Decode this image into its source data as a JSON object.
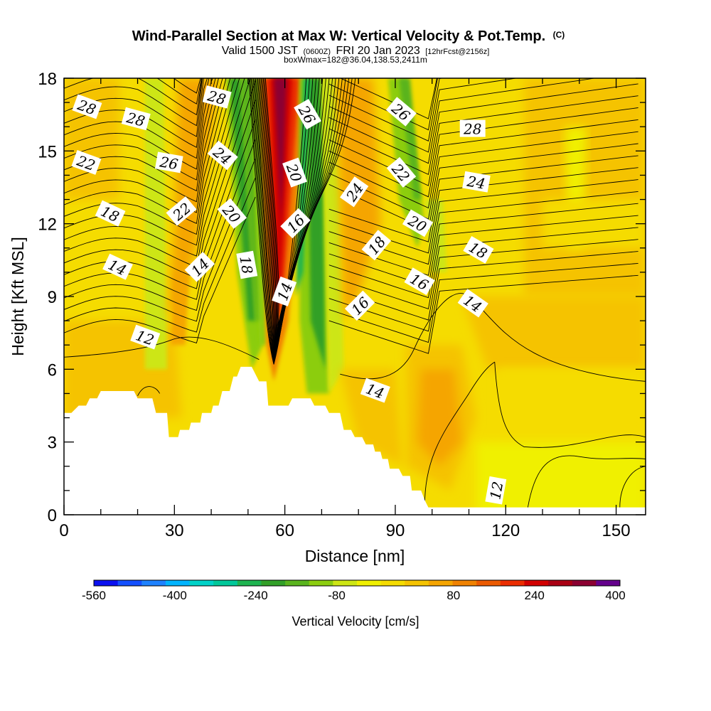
{
  "chart_data": {
    "type": "heatmap",
    "title": "Wind-Parallel Section at Max W: Vertical Velocity & Pot.Temp.",
    "title_suffix": "(C)",
    "subtitle": {
      "valid": "Valid 1500 JST",
      "utc": "(0600Z)",
      "date": "FRI 20 Jan 2023",
      "forecast": "[12hrFcst@2156z]"
    },
    "box_info": "boxWmax=182@36.04,138.53,2411m",
    "xlabel": "Distance [nm]",
    "ylabel": "Height [Kft MSL]",
    "xlim": [
      0,
      158
    ],
    "ylim": [
      0,
      18
    ],
    "x_ticks": [
      0,
      30,
      60,
      90,
      120,
      150
    ],
    "y_ticks": [
      0,
      3,
      6,
      9,
      12,
      15,
      18
    ],
    "colorbar": {
      "title": "Vertical Velocity [cm/s]",
      "tick_labels": [
        "-560",
        "-400",
        "-240",
        "-80",
        "80",
        "240",
        "400"
      ],
      "tick_values": [
        -560,
        -400,
        -240,
        -80,
        80,
        240,
        400
      ],
      "levels": [
        -560,
        -480,
        -400,
        -320,
        -240,
        -160,
        -80,
        -40,
        0,
        40,
        80,
        160,
        240,
        320,
        400,
        480
      ],
      "colors": [
        "#0a10f0",
        "#1450ff",
        "#1e82ff",
        "#00b4ff",
        "#00d2c8",
        "#00c89a",
        "#1eb450",
        "#32a028",
        "#5ab41e",
        "#8ccd0f",
        "#cde614",
        "#f0f000",
        "#f5dc00",
        "#f5c300",
        "#f5a500",
        "#f08200",
        "#eb5a00",
        "#eb2d00",
        "#d20000",
        "#aa0014",
        "#8c0032",
        "#64008c"
      ]
    },
    "terrain_kft": [
      [
        0,
        4.2
      ],
      [
        2,
        4.2
      ],
      [
        4,
        4.5
      ],
      [
        6,
        4.5
      ],
      [
        7,
        4.8
      ],
      [
        9,
        4.8
      ],
      [
        10,
        5.1
      ],
      [
        19,
        5.1
      ],
      [
        20,
        4.8
      ],
      [
        24,
        4.8
      ],
      [
        25,
        4.2
      ],
      [
        28,
        4.2
      ],
      [
        28.5,
        3.2
      ],
      [
        31,
        3.2
      ],
      [
        31.5,
        3.5
      ],
      [
        34,
        3.5
      ],
      [
        34.5,
        3.8
      ],
      [
        37,
        3.8
      ],
      [
        37.5,
        4.2
      ],
      [
        40,
        4.2
      ],
      [
        40.5,
        4.5
      ],
      [
        42,
        4.5
      ],
      [
        43,
        5.1
      ],
      [
        45,
        5.1
      ],
      [
        46,
        5.7
      ],
      [
        47,
        5.7
      ],
      [
        48,
        6.1
      ],
      [
        51,
        6.1
      ],
      [
        53,
        5.5
      ],
      [
        55,
        5.5
      ],
      [
        55.5,
        4.5
      ],
      [
        61,
        4.5
      ],
      [
        62,
        4.8
      ],
      [
        67,
        4.8
      ],
      [
        68,
        4.5
      ],
      [
        71,
        4.5
      ],
      [
        72,
        4.2
      ],
      [
        75,
        4.2
      ],
      [
        76,
        3.5
      ],
      [
        78,
        3.5
      ],
      [
        79,
        3.2
      ],
      [
        81,
        3.2
      ],
      [
        82,
        2.9
      ],
      [
        84,
        2.9
      ],
      [
        84.5,
        2.6
      ],
      [
        86,
        2.6
      ],
      [
        86.5,
        2.3
      ],
      [
        88,
        2.3
      ],
      [
        88.5,
        1.9
      ],
      [
        91,
        1.9
      ],
      [
        92,
        1.6
      ],
      [
        94,
        1.6
      ],
      [
        94.5,
        1.0
      ],
      [
        97,
        1.0
      ],
      [
        98,
        0.6
      ],
      [
        99,
        0.3
      ],
      [
        158,
        0.3
      ]
    ],
    "theta_contour_labels": [
      {
        "value": "28",
        "x": 6.2,
        "y": 16.8,
        "rot": 20
      },
      {
        "value": "28",
        "x": 19.5,
        "y": 16.3,
        "rot": 15
      },
      {
        "value": "28",
        "x": 41.5,
        "y": 17.2,
        "rot": 15
      },
      {
        "value": "26",
        "x": 28.5,
        "y": 14.5,
        "rot": 10
      },
      {
        "value": "26",
        "x": 66,
        "y": 16.5,
        "rot": 60
      },
      {
        "value": "26",
        "x": 91.5,
        "y": 16.6,
        "rot": 40
      },
      {
        "value": "28",
        "x": 111,
        "y": 15.9,
        "rot": 0
      },
      {
        "value": "22",
        "x": 6,
        "y": 14.5,
        "rot": 20
      },
      {
        "value": "24",
        "x": 43,
        "y": 14.8,
        "rot": 40
      },
      {
        "value": "20",
        "x": 62.5,
        "y": 14.1,
        "rot": 70
      },
      {
        "value": "22",
        "x": 91.5,
        "y": 14.1,
        "rot": 50
      },
      {
        "value": "24",
        "x": 112,
        "y": 13.7,
        "rot": 10
      },
      {
        "value": "18",
        "x": 12.5,
        "y": 12.4,
        "rot": 25
      },
      {
        "value": "22",
        "x": 32,
        "y": 12.5,
        "rot": -40
      },
      {
        "value": "20",
        "x": 45.5,
        "y": 12.4,
        "rot": 50
      },
      {
        "value": "16",
        "x": 63,
        "y": 12,
        "rot": -45
      },
      {
        "value": "24",
        "x": 79,
        "y": 13.3,
        "rot": -55
      },
      {
        "value": "20",
        "x": 96,
        "y": 12,
        "rot": 30
      },
      {
        "value": "14",
        "x": 14.5,
        "y": 10.2,
        "rot": 25
      },
      {
        "value": "14",
        "x": 37,
        "y": 10.2,
        "rot": -45
      },
      {
        "value": "18",
        "x": 49.5,
        "y": 10.3,
        "rot": 80
      },
      {
        "value": "18",
        "x": 85,
        "y": 11.1,
        "rot": -50
      },
      {
        "value": "18",
        "x": 112.5,
        "y": 10.9,
        "rot": 30
      },
      {
        "value": "14",
        "x": 60,
        "y": 9.2,
        "rot": -70
      },
      {
        "value": "16",
        "x": 96.5,
        "y": 9.6,
        "rot": 30
      },
      {
        "value": "16",
        "x": 80.5,
        "y": 8.6,
        "rot": -45
      },
      {
        "value": "14",
        "x": 111,
        "y": 8.7,
        "rot": 35
      },
      {
        "value": "12",
        "x": 22,
        "y": 7.3,
        "rot": 20
      },
      {
        "value": "14",
        "x": 84.5,
        "y": 5.1,
        "rot": 20
      },
      {
        "value": "12",
        "x": 117.5,
        "y": 1.0,
        "rot": -80
      }
    ]
  }
}
